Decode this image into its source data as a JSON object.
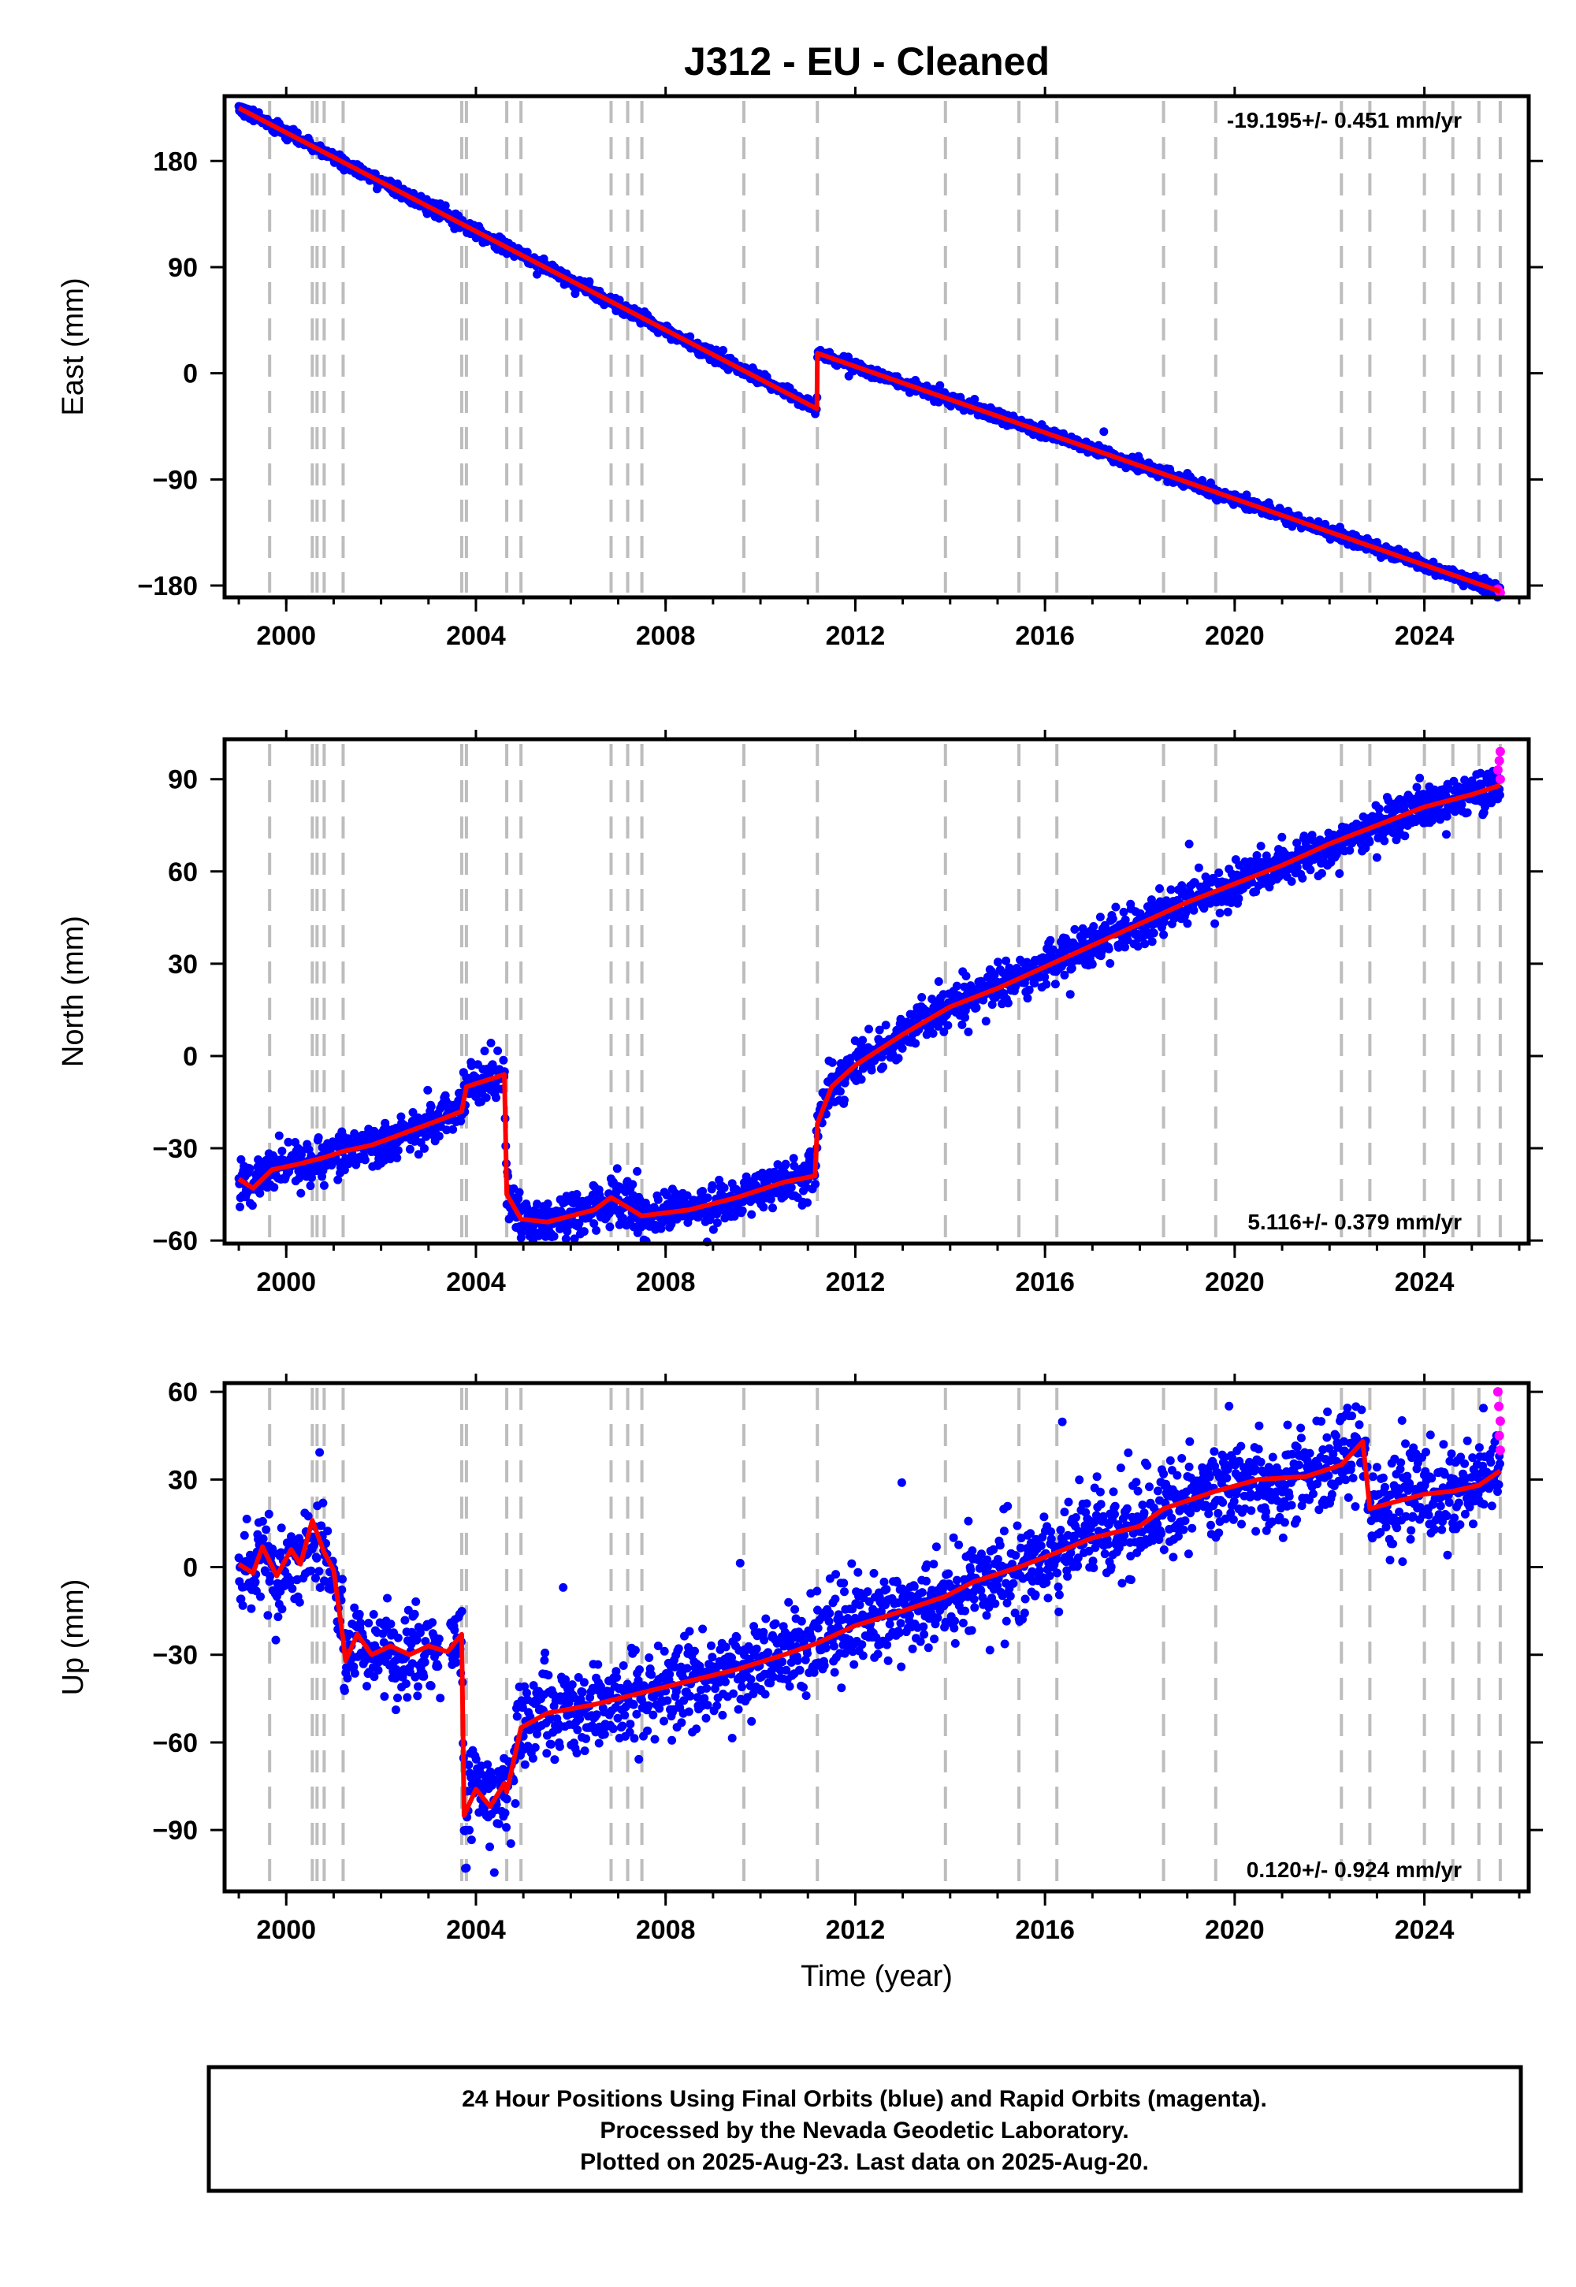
{
  "title": "J312  - EU - Cleaned",
  "footer": {
    "line1": "24 Hour Positions Using Final Orbits (blue) and Rapid Orbits (magenta).",
    "line2": "Processed by the Nevada Geodetic Laboratory.",
    "line3": "Plotted on 2025-Aug-23. Last data on 2025-Aug-20."
  },
  "colors": {
    "final_orbits": "#0000ff",
    "rapid_orbits": "#ff00ff",
    "model": "#ff0000",
    "event_lines": "#bdbdbd"
  },
  "chart_data": [
    {
      "type": "scatter",
      "component": "east",
      "ylabel": "East (mm)",
      "xlabel": "",
      "xlim": [
        1998.7,
        2026.2
      ],
      "ylim": [
        -190,
        235
      ],
      "xticks": [
        2000,
        2004,
        2008,
        2012,
        2016,
        2020,
        2024
      ],
      "yticks": [
        -180,
        -90,
        0,
        90,
        180
      ],
      "grid": false,
      "rate_label": "-19.195+/- 0.451 mm/yr",
      "rate_position": "top-right",
      "event_lines": [
        1999.65,
        2000.55,
        2000.65,
        2000.8,
        2001.2,
        2003.7,
        2003.8,
        2004.65,
        2004.95,
        2006.85,
        2007.2,
        2007.5,
        2009.65,
        2011.2,
        2013.9,
        2015.45,
        2016.25,
        2018.5,
        2019.6,
        2022.25,
        2022.85,
        2024.0,
        2024.6,
        2025.15,
        2025.6
      ],
      "model_x": [
        1999.0,
        2011.19,
        2011.2,
        2025.6
      ],
      "model_y": [
        225,
        -30,
        17,
        -185
      ],
      "noise_mm": 2.5,
      "rapid_points": [
        [
          2025.55,
          -183
        ],
        [
          2025.58,
          -185
        ],
        [
          2025.6,
          -186
        ]
      ]
    },
    {
      "type": "scatter",
      "component": "north",
      "ylabel": "North (mm)",
      "xlabel": "",
      "xlim": [
        1998.7,
        2026.2
      ],
      "ylim": [
        -61,
        103
      ],
      "xticks": [
        2000,
        2004,
        2008,
        2012,
        2016,
        2020,
        2024
      ],
      "yticks": [
        -60,
        -30,
        0,
        30,
        60,
        90
      ],
      "grid": false,
      "rate_label": "5.116+/- 0.379 mm/yr",
      "rate_position": "bottom-right",
      "event_lines": [
        1999.65,
        2000.55,
        2000.65,
        2000.8,
        2001.2,
        2003.7,
        2003.8,
        2004.65,
        2004.95,
        2006.85,
        2007.2,
        2007.5,
        2009.65,
        2011.2,
        2013.9,
        2015.45,
        2016.25,
        2018.5,
        2019.6,
        2022.25,
        2022.85,
        2024.0,
        2024.6,
        2025.15,
        2025.6
      ],
      "model_x": [
        1999.0,
        1999.3,
        1999.7,
        2000.3,
        2000.8,
        2001.2,
        2001.8,
        2002.5,
        2003.2,
        2003.7,
        2003.8,
        2004.6,
        2004.65,
        2004.95,
        2005.5,
        2006.5,
        2006.85,
        2007.5,
        2008.5,
        2009.5,
        2010.5,
        2011.15,
        2011.2,
        2011.5,
        2012.0,
        2013.0,
        2014.0,
        2015.0,
        2016.0,
        2017.0,
        2018.0,
        2019.0,
        2020.0,
        2021.0,
        2022.0,
        2023.0,
        2024.0,
        2025.0,
        2025.6
      ],
      "model_y": [
        -40,
        -43,
        -37,
        -35,
        -33,
        -31,
        -29,
        -25,
        -21,
        -18,
        -10,
        -6,
        -45,
        -53,
        -54,
        -50,
        -46,
        -52,
        -50,
        -46,
        -41,
        -39,
        -22,
        -10,
        -3,
        7,
        16,
        22,
        29,
        36,
        43,
        50,
        56,
        62,
        69,
        75,
        81,
        85,
        88
      ],
      "noise_mm": 3.5,
      "rapid_points": [
        [
          2025.55,
          93
        ],
        [
          2025.58,
          96
        ],
        [
          2025.6,
          99
        ],
        [
          2025.6,
          90
        ]
      ]
    },
    {
      "type": "scatter",
      "component": "up",
      "ylabel": "Up (mm)",
      "xlabel": "Time (year)",
      "xlim": [
        1998.7,
        2026.2
      ],
      "ylim": [
        -111,
        63
      ],
      "xticks": [
        2000,
        2004,
        2008,
        2012,
        2016,
        2020,
        2024
      ],
      "yticks": [
        -90,
        -60,
        -30,
        0,
        30,
        60
      ],
      "grid": false,
      "rate_label": "0.120+/- 0.924 mm/yr",
      "rate_position": "bottom-right",
      "event_lines": [
        1999.65,
        2000.55,
        2000.65,
        2000.8,
        2001.2,
        2003.7,
        2003.8,
        2004.65,
        2004.95,
        2006.85,
        2007.2,
        2007.5,
        2009.65,
        2011.2,
        2013.9,
        2015.45,
        2016.25,
        2018.5,
        2019.6,
        2022.25,
        2022.85,
        2024.0,
        2024.6,
        2025.15,
        2025.6
      ],
      "model_x": [
        1999.0,
        1999.3,
        1999.5,
        1999.8,
        2000.1,
        2000.3,
        2000.55,
        2000.8,
        2001.0,
        2001.2,
        2001.25,
        2001.5,
        2001.8,
        2002.2,
        2002.6,
        2003.0,
        2003.4,
        2003.7,
        2003.75,
        2004.0,
        2004.3,
        2004.6,
        2004.65,
        2004.95,
        2005.5,
        2006.5,
        2007.5,
        2008.5,
        2009.5,
        2010.5,
        2011.2,
        2012.0,
        2013.0,
        2013.9,
        2014.5,
        2015.45,
        2016.25,
        2017.0,
        2018.0,
        2018.5,
        2019.6,
        2020.5,
        2021.5,
        2022.25,
        2022.7,
        2022.85,
        2023.3,
        2024.0,
        2024.6,
        2025.15,
        2025.6
      ],
      "model_y": [
        1,
        -2,
        7,
        -3,
        6,
        1,
        16,
        5,
        -1,
        -25,
        -32,
        -23,
        -30,
        -27,
        -30,
        -27,
        -29,
        -23,
        -85,
        -76,
        -82,
        -74,
        -77,
        -55,
        -50,
        -47,
        -43,
        -39,
        -35,
        -30,
        -26,
        -20,
        -15,
        -10,
        -5,
        0,
        5,
        10,
        14,
        20,
        26,
        30,
        31,
        35,
        43,
        20,
        22,
        25,
        26,
        28,
        33
      ],
      "noise_mm": 7.5,
      "rapid_points": [
        [
          2025.55,
          60
        ],
        [
          2025.57,
          55
        ],
        [
          2025.6,
          50
        ],
        [
          2025.58,
          45
        ],
        [
          2025.6,
          40
        ]
      ]
    }
  ]
}
